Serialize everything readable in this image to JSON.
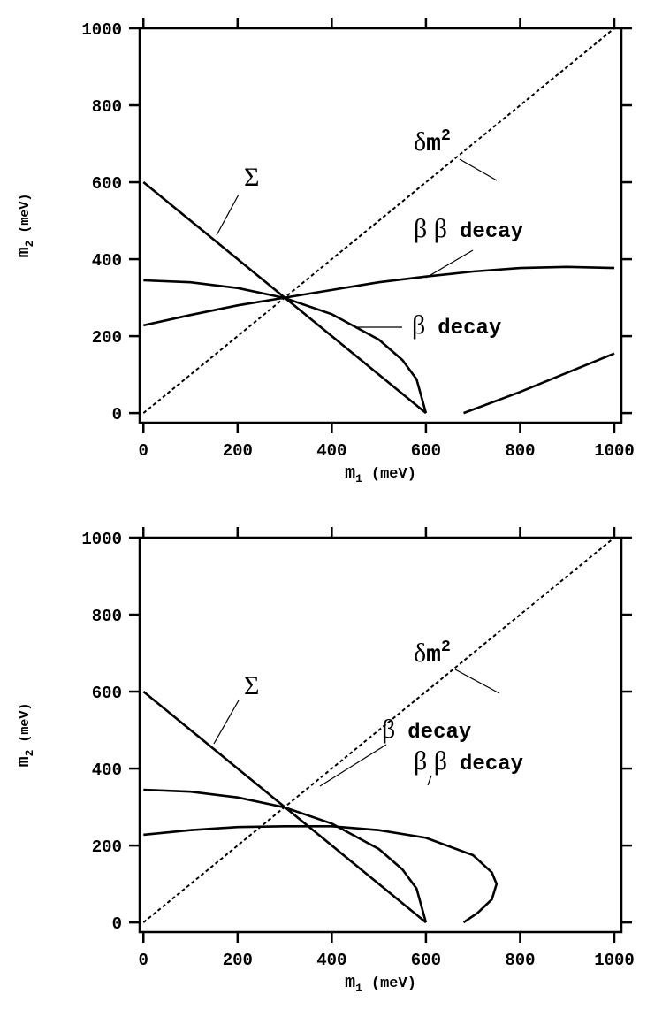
{
  "chart_data": [
    {
      "type": "line",
      "xlim": [
        -8,
        1015
      ],
      "ylim": [
        -25,
        1000
      ],
      "xticks": [
        0,
        200,
        400,
        600,
        800,
        1000
      ],
      "yticks": [
        0,
        200,
        400,
        600,
        800,
        1000
      ],
      "xlabel": {
        "text": "m",
        "sub": "1",
        "unit": "(meV)"
      },
      "ylabel": {
        "text": "m",
        "sub": "2",
        "unit": "(meV)"
      },
      "series": [
        {
          "x": [
            0,
            1000
          ],
          "values": [
            0,
            1000
          ],
          "color": "#000",
          "dash": true
        },
        {
          "x": [
            0,
            600
          ],
          "values": [
            600,
            0
          ],
          "color": "#000"
        },
        {
          "x": [
            0,
            100,
            200,
            300,
            400,
            500,
            550,
            580,
            600
          ],
          "values": [
            345,
            340,
            325,
            299,
            257,
            191,
            138,
            88,
            0
          ],
          "color": "#000"
        },
        {
          "x": [
            0,
            100,
            200,
            300,
            400,
            500,
            600,
            700,
            800,
            900,
            1000,
            null,
            680,
            800,
            900,
            1000
          ],
          "values": [
            228,
            255,
            280,
            300,
            320,
            340,
            355,
            368,
            377,
            380,
            377,
            null,
            0,
            55,
            105,
            155
          ],
          "color": "#000"
        }
      ],
      "annotations": [
        {
          "greek": "δ",
          "text": "m",
          "sup": "2"
        },
        {
          "greek": "Σ"
        },
        {
          "greek": "β β",
          "text": "decay"
        },
        {
          "greek": "β",
          "text": "decay"
        }
      ]
    },
    {
      "type": "line",
      "xlim": [
        -8,
        1015
      ],
      "ylim": [
        -25,
        1000
      ],
      "xticks": [
        0,
        200,
        400,
        600,
        800,
        1000
      ],
      "yticks": [
        0,
        200,
        400,
        600,
        800,
        1000
      ],
      "xlabel": {
        "text": "m",
        "sub": "1",
        "unit": "(meV)"
      },
      "ylabel": {
        "text": "m",
        "sub": "2",
        "unit": "(meV)"
      },
      "series": [
        {
          "x": [
            0,
            1000
          ],
          "values": [
            0,
            1000
          ],
          "color": "#000",
          "dash": true
        },
        {
          "x": [
            0,
            600
          ],
          "values": [
            600,
            0
          ],
          "color": "#000"
        },
        {
          "x": [
            0,
            100,
            200,
            300,
            400,
            500,
            550,
            580,
            600
          ],
          "values": [
            345,
            340,
            325,
            299,
            257,
            191,
            138,
            88,
            0
          ],
          "color": "#000"
        },
        {
          "x": [
            0,
            100,
            200,
            300,
            400,
            500,
            600,
            700,
            740,
            750,
            740,
            710,
            680
          ],
          "values": [
            228,
            240,
            248,
            250,
            250,
            240,
            220,
            175,
            130,
            100,
            60,
            25,
            0
          ],
          "color": "#000"
        }
      ],
      "annotations": [
        {
          "greek": "δ",
          "text": "m",
          "sup": "2"
        },
        {
          "greek": "Σ"
        },
        {
          "greek": "β",
          "text": "decay"
        },
        {
          "greek": "β β",
          "text": "decay"
        }
      ]
    }
  ]
}
